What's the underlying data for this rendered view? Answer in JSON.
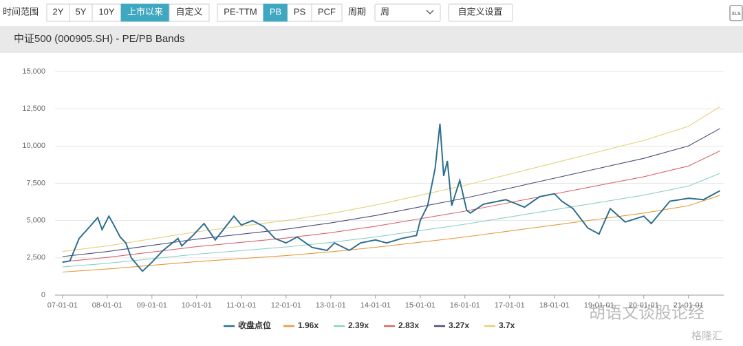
{
  "toolbar": {
    "range_label": "时间范围",
    "range_buttons": [
      {
        "label": "2Y",
        "active": false
      },
      {
        "label": "5Y",
        "active": false
      },
      {
        "label": "10Y",
        "active": false
      },
      {
        "label": "上市以来",
        "active": true
      },
      {
        "label": "自定义",
        "active": false
      }
    ],
    "metric_buttons": [
      {
        "label": "PE-TTM",
        "active": false
      },
      {
        "label": "PB",
        "active": true
      },
      {
        "label": "PS",
        "active": false
      },
      {
        "label": "PCF",
        "active": false
      }
    ],
    "period_label": "周期",
    "period_value": "周",
    "custom_button": "自定义设置",
    "export": "XLS"
  },
  "watermarks": [
    "胡语文谈股论经",
    "格隆汇"
  ],
  "chart_data": {
    "type": "line",
    "title": "中证500 (000905.SH) - PE/PB Bands",
    "xlim": [
      "06-11-01",
      "21-10-15"
    ],
    "xticks": [
      "07-01-01",
      "08-01-01",
      "09-01-01",
      "10-01-01",
      "11-01-01",
      "12-01-01",
      "13-01-01",
      "14-01-01",
      "15-01-01",
      "16-01-01",
      "17-01-01",
      "18-01-01",
      "19-01-01",
      "20-01-01",
      "21-01-01"
    ],
    "ylim": [
      0,
      15000
    ],
    "yticks": [
      0,
      {
        "value": 2500,
        "label": "2,500"
      },
      {
        "value": 5000,
        "label": "5,000"
      },
      {
        "value": 7500,
        "label": "7,500"
      },
      {
        "value": 10000,
        "label": "10,000"
      },
      {
        "value": 12500,
        "label": "12,500"
      },
      {
        "value": 15000,
        "label": "15,000"
      }
    ],
    "grid": true,
    "series": [
      {
        "name": "收盘点位",
        "color": "#2e6e8e",
        "x": [
          "07-01-01",
          "07-03-01",
          "07-05-15",
          "07-08-01",
          "07-10-15",
          "07-11-20",
          "08-01-15",
          "08-03-01",
          "08-04-15",
          "08-06-01",
          "08-07-15",
          "08-10-15",
          "09-01-01",
          "09-04-01",
          "09-08-01",
          "09-09-01",
          "09-12-01",
          "10-03-01",
          "10-06-01",
          "10-11-01",
          "11-01-01",
          "11-04-01",
          "11-07-01",
          "11-10-01",
          "12-01-01",
          "12-04-01",
          "12-08-01",
          "12-12-01",
          "13-02-01",
          "13-06-01",
          "13-09-01",
          "14-01-01",
          "14-04-01",
          "14-08-01",
          "14-12-01",
          "15-01-01",
          "15-03-01",
          "15-05-01",
          "15-06-10",
          "15-07-10",
          "15-08-10",
          "15-09-15",
          "15-11-20",
          "16-01-15",
          "16-02-15",
          "16-06-01",
          "16-12-01",
          "17-01-01",
          "17-05-01",
          "17-09-01",
          "18-01-01",
          "18-03-01",
          "18-06-01",
          "18-10-01",
          "19-01-01",
          "19-04-01",
          "19-08-01",
          "20-01-01",
          "20-03-01",
          "20-08-01",
          "21-01-01",
          "21-05-01",
          "21-09-15"
        ],
        "values": [
          2200,
          2300,
          3800,
          4500,
          5200,
          4400,
          5300,
          4600,
          3900,
          3500,
          2500,
          1600,
          2200,
          3000,
          3800,
          3300,
          4000,
          4800,
          3700,
          5300,
          4700,
          5000,
          4600,
          3800,
          3500,
          3900,
          3200,
          3000,
          3500,
          3000,
          3500,
          3700,
          3500,
          3800,
          4000,
          5000,
          6000,
          8500,
          11500,
          8000,
          9000,
          6000,
          7700,
          5700,
          5500,
          6100,
          6400,
          6300,
          5900,
          6600,
          6800,
          6300,
          5800,
          4500,
          4100,
          5800,
          4900,
          5300,
          4800,
          6300,
          6500,
          6400,
          7000
        ]
      },
      {
        "name": "1.96x",
        "color": "#e8983a",
        "x": [
          "07-01-01",
          "08-01-01",
          "09-01-01",
          "10-01-01",
          "11-01-01",
          "12-01-01",
          "13-01-01",
          "14-01-01",
          "15-01-01",
          "16-01-01",
          "17-01-01",
          "18-01-01",
          "19-01-01",
          "20-01-01",
          "21-01-01",
          "21-09-15"
        ],
        "values": [
          1548,
          1750,
          1999,
          2250,
          2450,
          2650,
          2901,
          3201,
          3550,
          3900,
          4300,
          4700,
          5100,
          5500,
          6000,
          6699
        ]
      },
      {
        "name": "2.39x",
        "color": "#8ccfc4",
        "x": [
          "07-01-01",
          "08-01-01",
          "09-01-01",
          "10-01-01",
          "11-01-01",
          "12-01-01",
          "13-01-01",
          "14-01-01",
          "15-01-01",
          "16-01-01",
          "17-01-01",
          "18-01-01",
          "19-01-01",
          "20-01-01",
          "21-01-01",
          "21-09-15"
        ],
        "values": [
          1888,
          2134,
          2438,
          2744,
          2988,
          3231,
          3537,
          3903,
          4328,
          4756,
          5244,
          5731,
          6219,
          6706,
          7316,
          8169
        ]
      },
      {
        "name": "2.83x",
        "color": "#d9646a",
        "x": [
          "07-01-01",
          "08-01-01",
          "09-01-01",
          "10-01-01",
          "11-01-01",
          "12-01-01",
          "13-01-01",
          "14-01-01",
          "15-01-01",
          "16-01-01",
          "17-01-01",
          "18-01-01",
          "19-01-01",
          "20-01-01",
          "21-01-01",
          "21-09-15"
        ],
        "values": [
          2236,
          2527,
          2887,
          3249,
          3538,
          3826,
          4188,
          4621,
          5125,
          5632,
          6209,
          6786,
          7364,
          7941,
          8663,
          9673
        ]
      },
      {
        "name": "3.27x",
        "color": "#4b4a78",
        "x": [
          "07-01-01",
          "08-01-01",
          "09-01-01",
          "10-01-01",
          "11-01-01",
          "12-01-01",
          "13-01-01",
          "14-01-01",
          "15-01-01",
          "16-01-01",
          "17-01-01",
          "18-01-01",
          "19-01-01",
          "20-01-01",
          "21-01-01",
          "21-09-15"
        ],
        "values": [
          2583,
          2920,
          3335,
          3754,
          4088,
          4421,
          4840,
          5340,
          5922,
          6507,
          7174,
          7841,
          8509,
          9176,
          10009,
          11177
        ]
      },
      {
        "name": "3.7x",
        "color": "#e6cf78",
        "x": [
          "07-01-01",
          "08-01-01",
          "09-01-01",
          "10-01-01",
          "11-01-01",
          "12-01-01",
          "13-01-01",
          "14-01-01",
          "15-01-01",
          "16-01-01",
          "17-01-01",
          "18-01-01",
          "19-01-01",
          "20-01-01",
          "21-01-01",
          "21-09-15"
        ],
        "values": [
          2923,
          3304,
          3774,
          4248,
          4625,
          5002,
          5476,
          6042,
          6701,
          7363,
          8118,
          8873,
          9627,
          10382,
          11326,
          12647
        ]
      }
    ]
  }
}
